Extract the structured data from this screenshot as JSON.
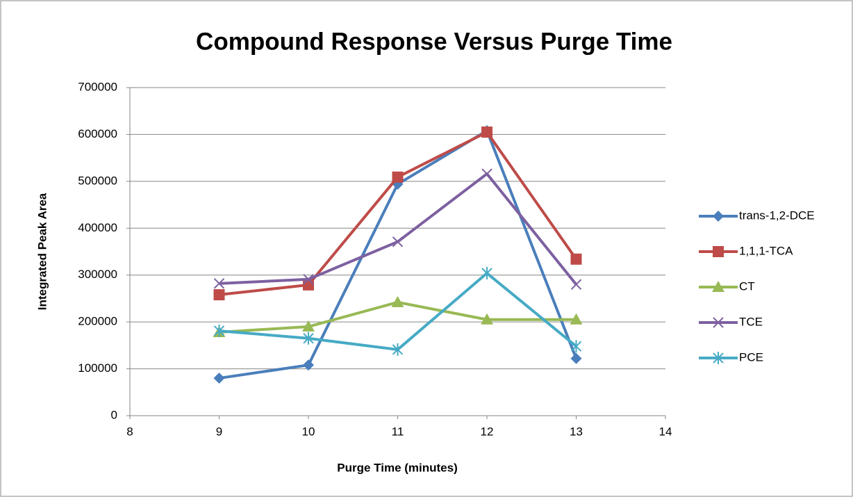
{
  "chart_data": {
    "type": "line",
    "title": "Compound Response Versus Purge Time",
    "x_label": "Purge Time (minutes)",
    "y_label": "Integrated Peak Area",
    "x": [
      9,
      10,
      11,
      12,
      13
    ],
    "series": [
      {
        "name": "trans-1,2-DCE",
        "color": "#4a7ebb",
        "marker": "diamond",
        "values": [
          80000,
          108000,
          494000,
          608000,
          122000
        ]
      },
      {
        "name": "1,1,1-TCA",
        "color": "#be4b48",
        "marker": "square",
        "values": [
          258000,
          279000,
          509000,
          605000,
          334000
        ]
      },
      {
        "name": "CT",
        "color": "#98b954",
        "marker": "triangle",
        "values": [
          178000,
          190000,
          242000,
          205000,
          205000
        ]
      },
      {
        "name": "TCE",
        "color": "#7d60a0",
        "marker": "x",
        "values": [
          282000,
          291000,
          371000,
          516000,
          280000
        ]
      },
      {
        "name": "PCE",
        "color": "#46aac5",
        "marker": "star",
        "values": [
          181000,
          165000,
          141000,
          304000,
          148000
        ]
      }
    ],
    "xlim": [
      8,
      14
    ],
    "xticks": [
      8,
      9,
      10,
      11,
      12,
      13,
      14
    ],
    "ylim": [
      0,
      700000
    ],
    "yticks": [
      0,
      100000,
      200000,
      300000,
      400000,
      500000,
      600000,
      700000
    ],
    "grid": true,
    "legend": "right"
  }
}
